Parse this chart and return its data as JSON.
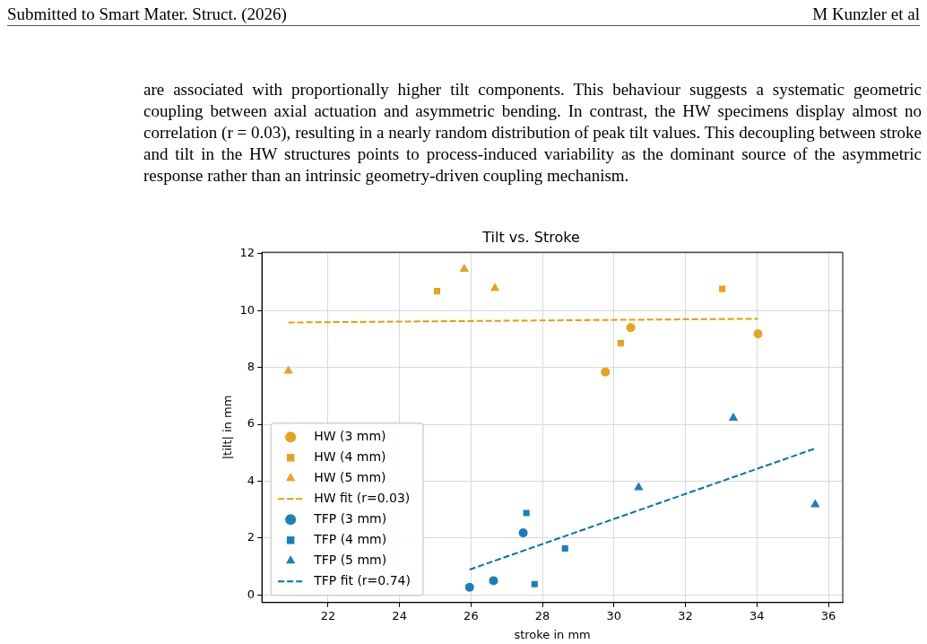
{
  "chart_data": {
    "type": "scatter",
    "title": "Tilt vs. Stroke",
    "xlabel": "stroke in mm",
    "ylabel": "|tilt| in mm",
    "annotations": [
      "Submitted to Smart Mater. Struct. (2026)",
      "M Kunzler et al",
      "are associated with proportionally higher tilt components.  This behaviour suggests a systematic geometric coupling between axial actuation and asymmetric bending. In contrast, the HW specimens display almost no correlation (r = 0.03), resulting in a nearly random distribution of peak tilt values. This decoupling between stroke and tilt in the HW structures points to process-induced variability as the dominant source of the asymmetric response rather than an intrinsic geometry-driven coupling mechanism."
    ],
    "xlim": [
      20.15,
      36.4
    ],
    "xticks": [
      22,
      24,
      26,
      28,
      30,
      32,
      34,
      36
    ],
    "ylim": [
      -0.27,
      12.05
    ],
    "yticks": [
      0,
      2,
      4,
      6,
      8,
      10,
      12
    ],
    "grid": true,
    "legend": "bottom left",
    "series": [
      {
        "name": "HW (3 mm)",
        "color": "#e8a21c",
        "marker": "circle",
        "x": [
          29.76,
          30.47,
          34.03
        ],
        "values": [
          7.84,
          9.4,
          9.18
        ]
      },
      {
        "name": "HW (4 mm)",
        "color": "#e8a21c",
        "marker": "square",
        "x": [
          25.05,
          30.19,
          33.03
        ],
        "values": [
          10.68,
          8.85,
          10.76
        ]
      },
      {
        "name": "HW (5 mm)",
        "color": "#e8a21c",
        "marker": "triangle",
        "x": [
          20.89,
          25.81,
          26.67
        ],
        "values": [
          7.88,
          11.46,
          10.79
        ]
      },
      {
        "name": "HW fit (r=0.03)",
        "type": "line",
        "color": "#e69f00",
        "line_style": "dashed",
        "marker": "none",
        "x": [
          20.89,
          34.03
        ],
        "values": [
          9.58,
          9.71
        ]
      },
      {
        "name": "TFP (3 mm)",
        "color": "#1a80bb",
        "marker": "circle",
        "x": [
          25.96,
          26.63,
          27.46
        ],
        "values": [
          0.27,
          0.5,
          2.18
        ]
      },
      {
        "name": "TFP (4 mm)",
        "color": "#1a80bb",
        "marker": "square",
        "x": [
          27.55,
          28.63,
          27.78
        ],
        "values": [
          2.88,
          1.63,
          0.38
        ]
      },
      {
        "name": "TFP (5 mm)",
        "color": "#1a80bb",
        "marker": "triangle",
        "x": [
          30.69,
          33.34,
          35.63
        ],
        "values": [
          3.78,
          6.22,
          3.18
        ]
      },
      {
        "name": "TFP fit (r=0.74)",
        "type": "line",
        "color": "#0072b2",
        "line_style": "dashed",
        "marker": "none",
        "x": [
          25.96,
          35.63
        ],
        "values": [
          0.89,
          5.15
        ]
      }
    ]
  }
}
